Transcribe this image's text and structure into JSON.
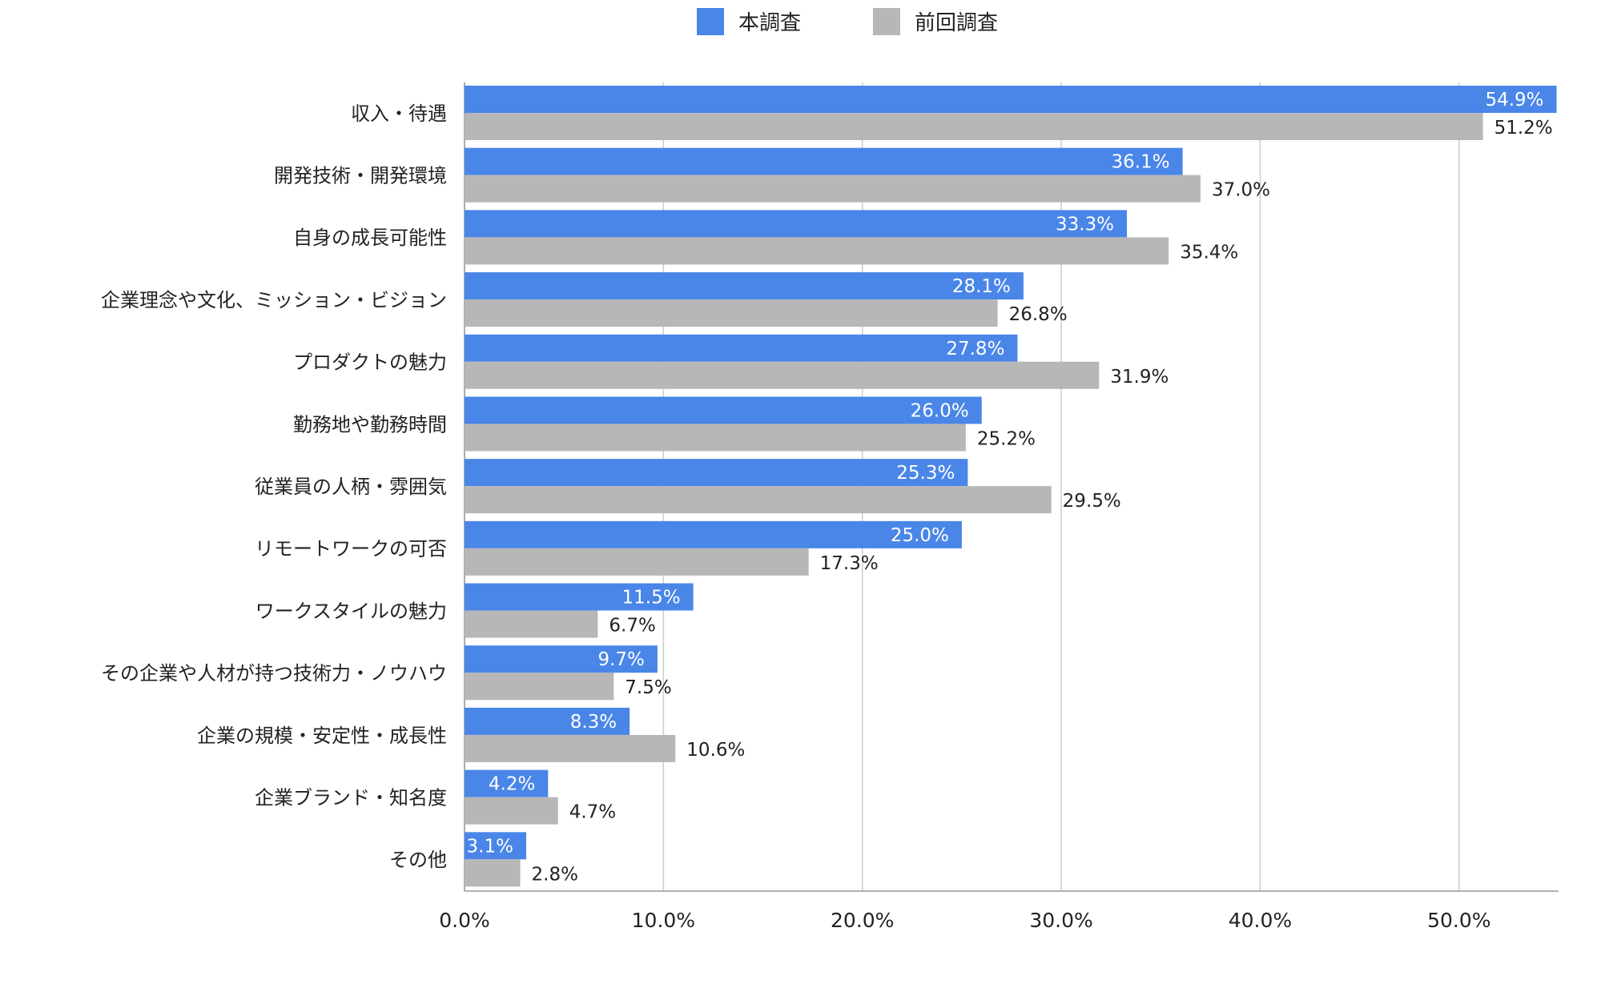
{
  "chart_data": {
    "type": "bar",
    "orientation": "horizontal",
    "categories": [
      "収入・待遇",
      "開発技術・開発環境",
      "自身の成長可能性",
      "企業理念や文化、ミッション・ビジョン",
      "プロダクトの魅力",
      "勤務地や勤務時間",
      "従業員の人柄・雰囲気",
      "リモートワークの可否",
      "ワークスタイルの魅力",
      "その企業や人材が持つ技術力・ノウハウ",
      "企業の規模・安定性・成長性",
      "企業ブランド・知名度",
      "その他"
    ],
    "series": [
      {
        "name": "本調査",
        "color": "#4a86e8",
        "values": [
          54.9,
          36.1,
          33.3,
          28.1,
          27.8,
          26.0,
          25.3,
          25.0,
          11.5,
          9.7,
          8.3,
          4.2,
          3.1
        ],
        "labels": [
          "54.9%",
          "36.1%",
          "33.3%",
          "28.1%",
          "27.8%",
          "26.0%",
          "25.3%",
          "25.0%",
          "11.5%",
          "9.7%",
          "8.3%",
          "4.2%",
          "3.1%"
        ]
      },
      {
        "name": "前回調査",
        "color": "#b7b7b7",
        "values": [
          51.2,
          37.0,
          35.4,
          26.8,
          31.9,
          25.2,
          29.5,
          17.3,
          6.7,
          7.5,
          10.6,
          4.7,
          2.8
        ],
        "labels": [
          "51.2%",
          "37.0%",
          "35.4%",
          "26.8%",
          "31.9%",
          "25.2%",
          "29.5%",
          "17.3%",
          "6.7%",
          "7.5%",
          "10.6%",
          "4.7%",
          "2.8%"
        ]
      }
    ],
    "xlim": [
      0,
      55
    ],
    "xticks": [
      0,
      10,
      20,
      30,
      40,
      50
    ],
    "xtick_labels": [
      "0.0%",
      "10.0%",
      "20.0%",
      "30.0%",
      "40.0%",
      "50.0%"
    ],
    "title": "",
    "xlabel": "",
    "ylabel": "",
    "grid": true,
    "legend_position": "top"
  },
  "colors": {
    "grid": "#cccccc",
    "axis": "#999999"
  }
}
